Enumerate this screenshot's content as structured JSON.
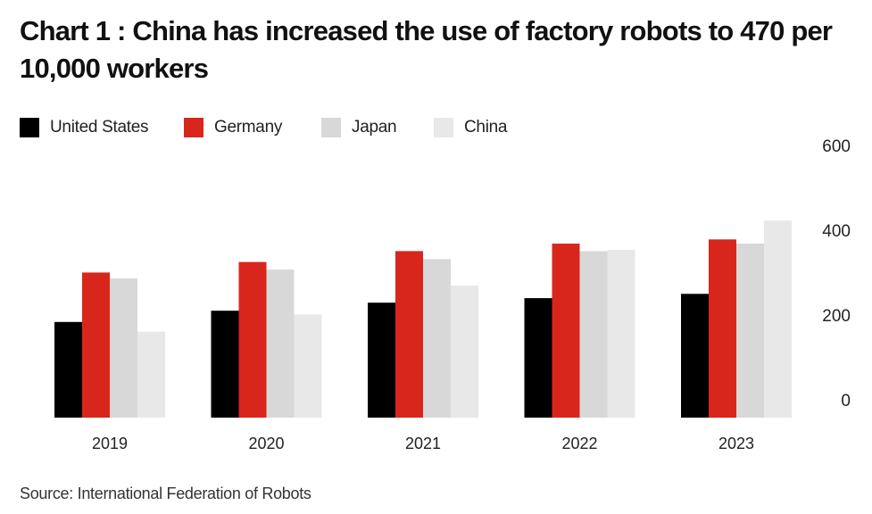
{
  "header": {
    "title": "Chart 1 : China has increased the use of factory robots to 470 per 10,000 workers"
  },
  "footer": {
    "source": "Source: International Federation of Robots"
  },
  "chart_data": {
    "type": "bar",
    "title": "Chart 1 : China has increased the use of factory robots to 470 per 10,000 workers",
    "categories": [
      "2019",
      "2020",
      "2021",
      "2022",
      "2023"
    ],
    "series": [
      {
        "name": "United States",
        "color": "#000000",
        "values": [
          228,
          255,
          274,
          285,
          295
        ]
      },
      {
        "name": "Germany",
        "color": "#d9261c",
        "values": [
          346,
          371,
          397,
          415,
          425
        ]
      },
      {
        "name": "Japan",
        "color": "#d8d8d8",
        "values": [
          332,
          353,
          378,
          397,
          415
        ]
      },
      {
        "name": "China",
        "color": "#e8e8e8",
        "values": [
          205,
          246,
          315,
          400,
          470
        ]
      }
    ],
    "yticks": [
      0,
      200,
      400,
      600
    ],
    "ylim": [
      0,
      600
    ],
    "yaxis_position": "right",
    "legend_position": "top-left",
    "grid": false
  }
}
